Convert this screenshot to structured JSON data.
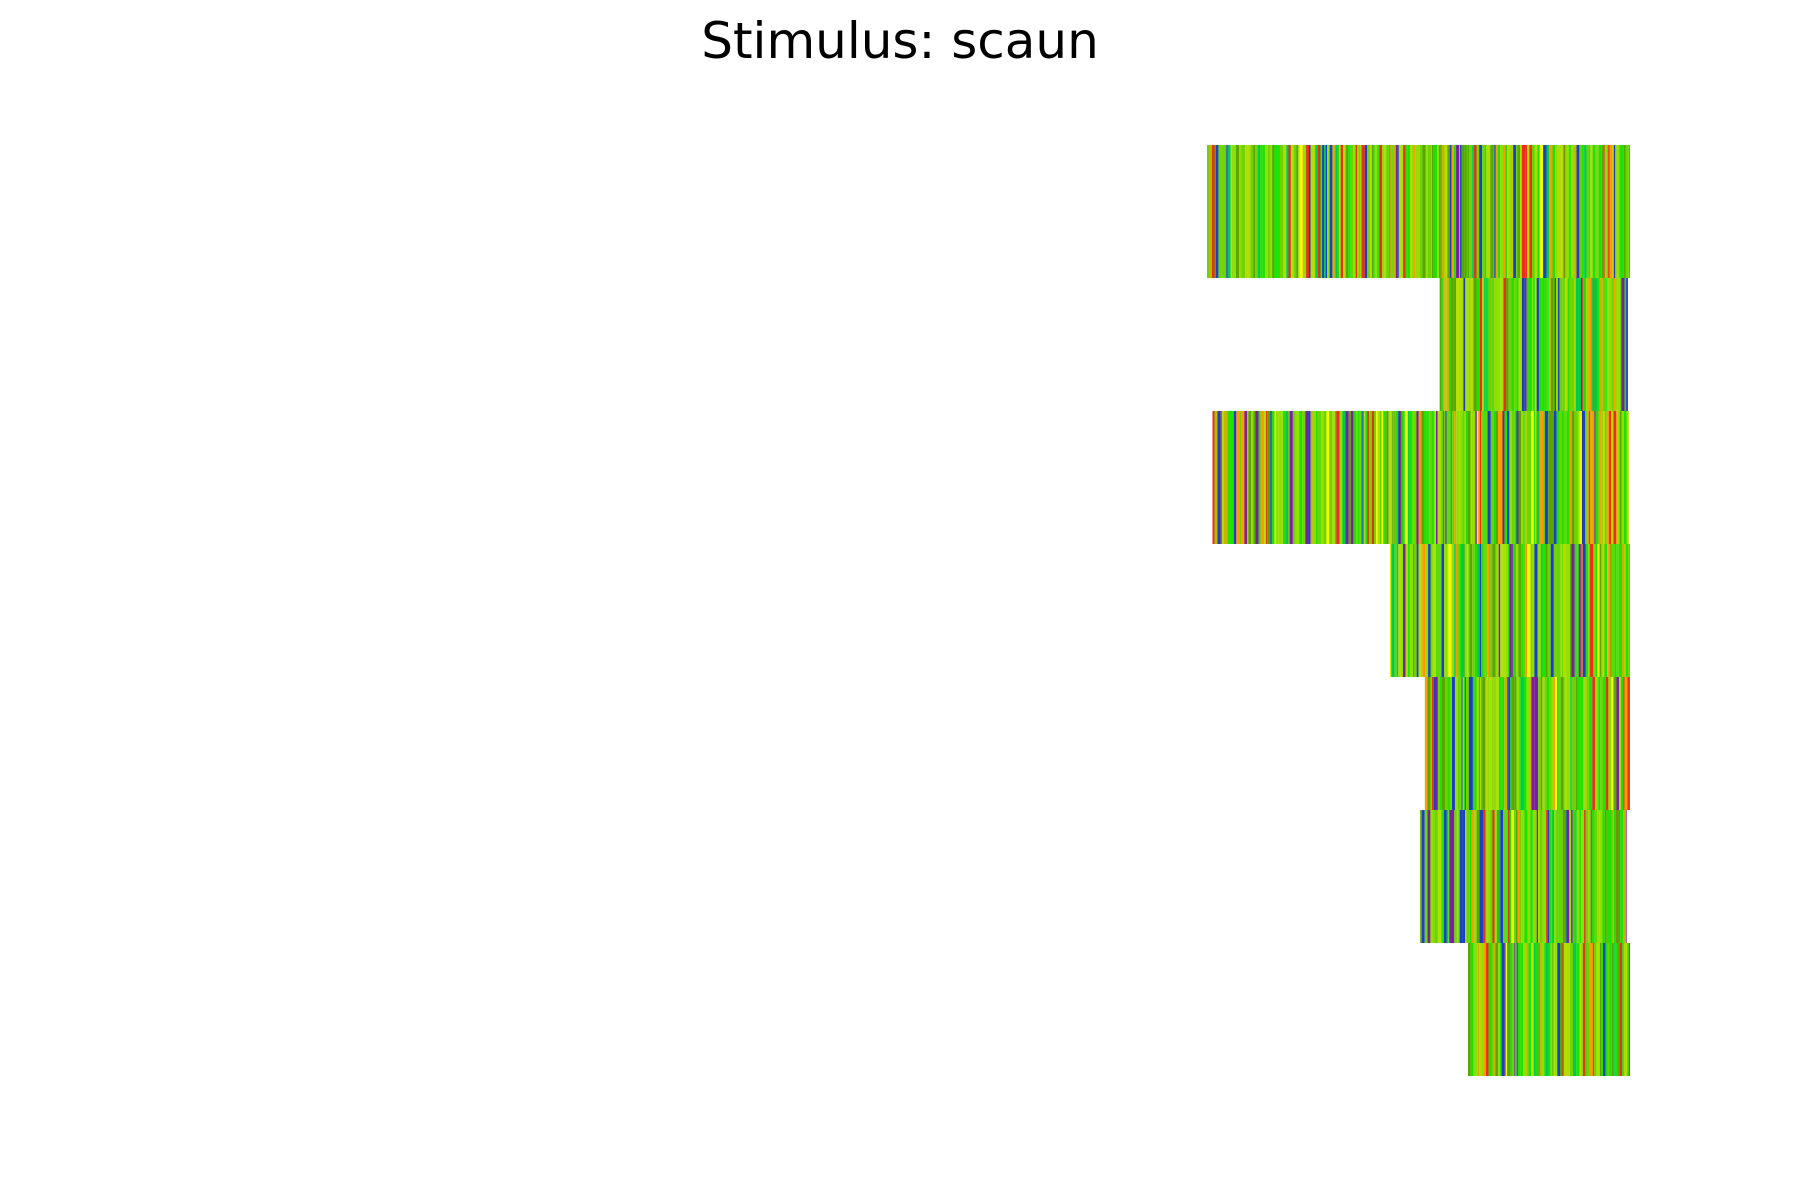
{
  "chart_data": {
    "type": "heatmap",
    "title": "Stimulus: scaun",
    "xlabel": "",
    "ylabel": "",
    "grid": false,
    "legend": "none",
    "axes_visible": false,
    "trial_count": 7,
    "trials": [
      {
        "row": 1,
        "start_fraction": 0.0,
        "end_fraction": 1.0
      },
      {
        "row": 2,
        "start_fraction": 0.55,
        "end_fraction": 0.995
      },
      {
        "row": 3,
        "start_fraction": 0.013,
        "end_fraction": 0.997
      },
      {
        "row": 4,
        "start_fraction": 0.432,
        "end_fraction": 1.0
      },
      {
        "row": 5,
        "start_fraction": 0.515,
        "end_fraction": 1.0
      },
      {
        "row": 6,
        "start_fraction": 0.504,
        "end_fraction": 0.992
      },
      {
        "row": 7,
        "start_fraction": 0.617,
        "end_fraction": 1.0
      }
    ],
    "palette": [
      "#22e000",
      "#6ed400",
      "#8fe000",
      "#b2dd00",
      "#f2ff00",
      "#ff9a00",
      "#e8301a",
      "#7a1fa0",
      "#1a3fc8",
      "#00c850",
      "#5aa500",
      "#c8b400"
    ]
  }
}
